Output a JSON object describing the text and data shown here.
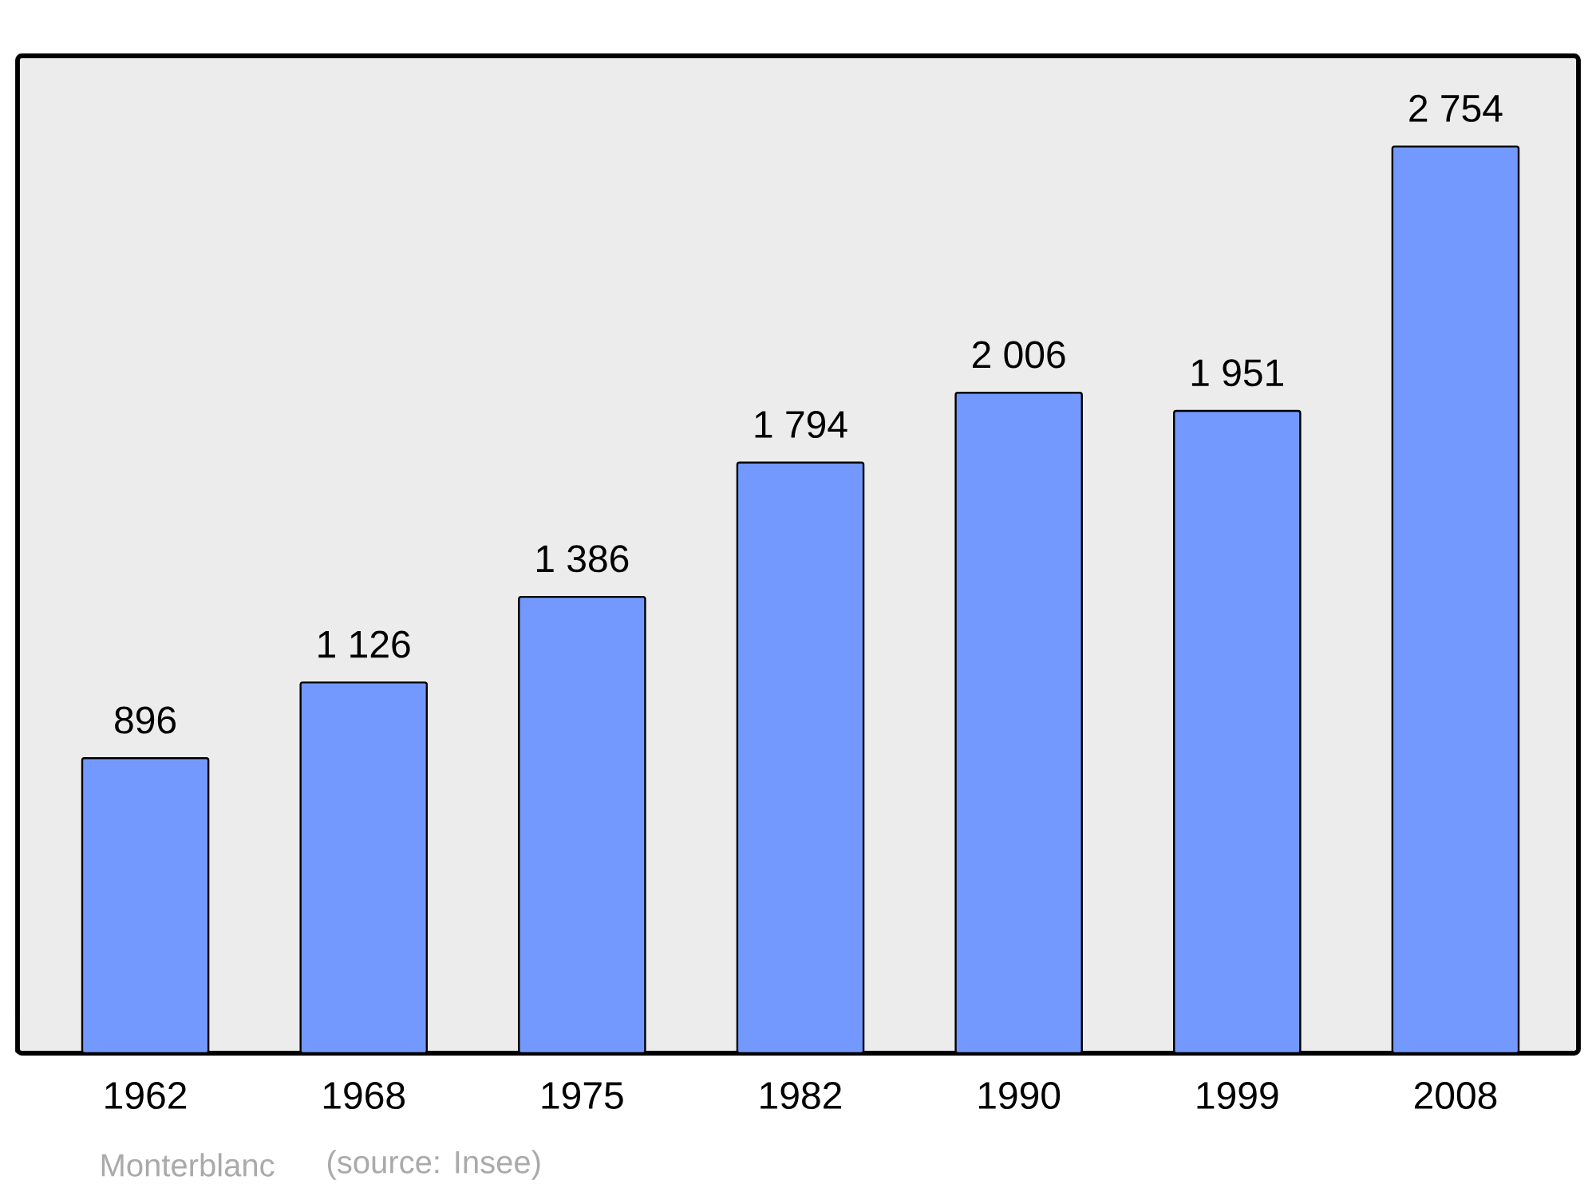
{
  "chart_data": {
    "type": "bar",
    "categories": [
      "1962",
      "1968",
      "1975",
      "1982",
      "1990",
      "1999",
      "2008"
    ],
    "values": [
      896,
      1126,
      1386,
      1794,
      2006,
      1951,
      2754
    ],
    "value_labels": [
      "896",
      "1 126",
      "1 386",
      "1 794",
      "2 006",
      "1 951",
      "2 754"
    ],
    "color": "#7399ff",
    "annotations": [
      "Monterblanc",
      "(source: Insee)"
    ]
  }
}
